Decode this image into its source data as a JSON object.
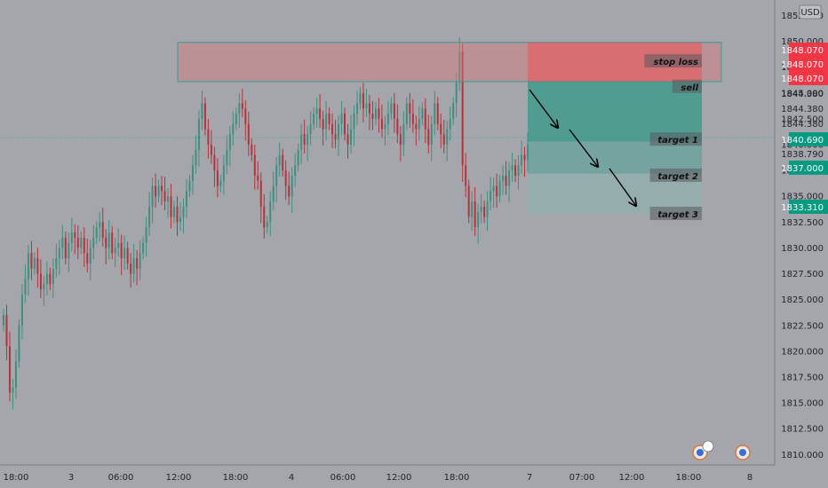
{
  "currency": "USD",
  "colors": {
    "background": "#a5a6ac",
    "up": "#3f8f7f",
    "down": "#b5323c",
    "stop_zone": "#c97c80",
    "target_zone": "#4f9f92",
    "price_label_red": "#f23645",
    "price_label_green": "#089981"
  },
  "chart_data": {
    "type": "candlestick",
    "symbol_currency": "USD",
    "ylim": [
      1809.0,
      1854.0
    ],
    "yticks": [
      "1810.000",
      "1812.500",
      "1815.000",
      "1817.500",
      "1820.000",
      "1822.500",
      "1825.000",
      "1827.500",
      "1830.000",
      "1832.500",
      "1835.000",
      "1837.500",
      "1840.000",
      "1842.500",
      "1845.000",
      "1847.500",
      "1850.000",
      "1852.500"
    ],
    "xticks": [
      "18:00",
      "3",
      "06:00",
      "12:00",
      "18:00",
      "4",
      "06:00",
      "12:00",
      "18:00",
      "7",
      "07:00",
      "12:00",
      "18:00",
      "8"
    ],
    "current_price": "1840.690",
    "price_labels": [
      {
        "text": "1848.070",
        "kind": "red"
      },
      {
        "text": "1848.070",
        "kind": "red"
      },
      {
        "text": "1848.070",
        "kind": "red"
      },
      {
        "text": "1844.380",
        "kind": "plain"
      },
      {
        "text": "1844.380",
        "kind": "plain"
      },
      {
        "text": "1844.380",
        "kind": "plain"
      },
      {
        "text": "1840.690",
        "kind": "green"
      },
      {
        "text": "1838.790",
        "kind": "plain"
      },
      {
        "text": "1837.000",
        "kind": "green"
      },
      {
        "text": "1833.310",
        "kind": "green"
      }
    ],
    "annotations": [
      {
        "text": "stop loss",
        "price": 1848.07
      },
      {
        "text": "sell",
        "price": 1845.6
      },
      {
        "text": "target 1",
        "price": 1840.5
      },
      {
        "text": "target 2",
        "price": 1837.0
      },
      {
        "text": "target 3",
        "price": 1833.3
      }
    ],
    "stop_zone": {
      "top": 1849.9,
      "bottom": 1846.1
    },
    "stop_box": {
      "top": 1849.9,
      "bottom": 1846.1
    },
    "target_zone": {
      "entry": 1846.1,
      "target1": 1840.3,
      "target2": 1837.2,
      "target3": 1833.3
    },
    "close_series": [
      1823.5,
      1820.5,
      1816,
      1816.5,
      1819,
      1822.5,
      1825.5,
      1827,
      1829.5,
      1828,
      1829,
      1827.5,
      1826,
      1826.5,
      1827.5,
      1826.5,
      1828,
      1829,
      1830,
      1831,
      1829,
      1830.5,
      1831.5,
      1831,
      1830,
      1831,
      1829.5,
      1828.5,
      1830,
      1831,
      1832,
      1832.5,
      1831,
      1830,
      1831.5,
      1829.5,
      1830,
      1830.5,
      1829,
      1830,
      1828.5,
      1827.5,
      1829,
      1828,
      1829.5,
      1830.5,
      1832,
      1834,
      1836,
      1835,
      1836,
      1835.5,
      1834.5,
      1835,
      1833,
      1834,
      1832.5,
      1833,
      1834,
      1835.5,
      1836.5,
      1838,
      1839.5,
      1842.5,
      1844,
      1841.5,
      1840,
      1839,
      1837.5,
      1836,
      1836.5,
      1838,
      1839.5,
      1841,
      1842,
      1843,
      1844,
      1843.5,
      1842,
      1840,
      1839,
      1837,
      1836.5,
      1834,
      1832,
      1832.5,
      1834.5,
      1836,
      1838,
      1839,
      1837.5,
      1836,
      1835,
      1837,
      1838,
      1839.5,
      1841,
      1840,
      1841,
      1842,
      1843,
      1843.5,
      1842.5,
      1841.5,
      1843,
      1842,
      1841,
      1840.5,
      1842,
      1843,
      1841,
      1840,
      1841.5,
      1843,
      1844,
      1845,
      1843.5,
      1844,
      1843,
      1842.5,
      1843.5,
      1842.5,
      1841.5,
      1842,
      1843,
      1844,
      1842.5,
      1841,
      1840,
      1842,
      1844,
      1843,
      1842,
      1841.5,
      1842.5,
      1843.5,
      1841.5,
      1840,
      1842,
      1844,
      1842,
      1841,
      1840,
      1841.5,
      1842.5,
      1844,
      1846,
      1849,
      1838,
      1836,
      1833,
      1834.5,
      1832,
      1833.5,
      1834,
      1833,
      1834.5,
      1835.5,
      1836,
      1835,
      1836.5,
      1837,
      1836,
      1837.5,
      1838,
      1837,
      1838,
      1839,
      1838.5,
      1840
    ]
  }
}
